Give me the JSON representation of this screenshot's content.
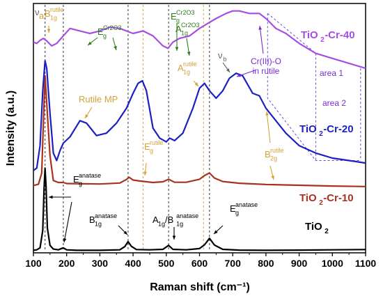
{
  "chart_data": {
    "type": "line",
    "xlabel": "Raman shift (cm⁻¹)",
    "ylabel": "Intensity (a.u.)",
    "xlim": [
      100,
      1100
    ],
    "xticks": [
      100,
      200,
      300,
      400,
      500,
      600,
      700,
      800,
      900,
      1000,
      1100
    ],
    "ylim": [
      0,
      1
    ],
    "y_ticks_shown": false,
    "grid": false,
    "vlines": [
      {
        "x": 135,
        "style": "dashed",
        "color": "#333333"
      },
      {
        "x": 190,
        "style": "dashed",
        "color": "#333333"
      },
      {
        "x": 385,
        "style": "dashed",
        "color": "#333333"
      },
      {
        "x": 430,
        "style": "dashed",
        "color": "#d4a237"
      },
      {
        "x": 507,
        "style": "dashed",
        "color": "#333333"
      },
      {
        "x": 612,
        "style": "dashed",
        "color": "#d4a237"
      },
      {
        "x": 630,
        "style": "dashed",
        "color": "#333333"
      }
    ],
    "series": [
      {
        "name": "TiO2",
        "label_main": "TiO",
        "label_sub": "2",
        "label_tail": "",
        "color": "#000000",
        "x": [
          100,
          110,
          120,
          128,
          132,
          135,
          138,
          142,
          150,
          160,
          175,
          190,
          200,
          230,
          300,
          360,
          375,
          385,
          395,
          410,
          450,
          490,
          507,
          520,
          560,
          600,
          615,
          630,
          645,
          670,
          720,
          800,
          900,
          1000,
          1100
        ],
        "y": [
          0.01,
          0.012,
          0.02,
          0.09,
          0.26,
          0.34,
          0.27,
          0.1,
          0.03,
          0.015,
          0.012,
          0.02,
          0.012,
          0.01,
          0.01,
          0.012,
          0.025,
          0.045,
          0.026,
          0.013,
          0.012,
          0.014,
          0.03,
          0.014,
          0.012,
          0.017,
          0.032,
          0.058,
          0.031,
          0.014,
          0.011,
          0.01,
          0.011,
          0.012,
          0.013
        ]
      },
      {
        "name": "TiO2-Cr-10",
        "label_main": "TiO",
        "label_sub": "2",
        "label_tail": "-Cr-10",
        "color": "#a8321e",
        "x": [
          100,
          115,
          125,
          130,
          135,
          140,
          150,
          160,
          175,
          190,
          200,
          300,
          360,
          380,
          388,
          400,
          420,
          460,
          490,
          507,
          525,
          560,
          600,
          615,
          630,
          645,
          670,
          720,
          800,
          900,
          1000,
          1100
        ],
        "y": [
          0.27,
          0.275,
          0.32,
          0.52,
          0.71,
          0.6,
          0.39,
          0.29,
          0.282,
          0.282,
          0.278,
          0.276,
          0.28,
          0.294,
          0.303,
          0.292,
          0.288,
          0.282,
          0.285,
          0.295,
          0.283,
          0.283,
          0.295,
          0.31,
          0.32,
          0.3,
          0.286,
          0.279,
          0.274,
          0.271,
          0.268,
          0.266
        ]
      },
      {
        "name": "TiO2-Cr-20",
        "label_main": "TiO",
        "label_sub": "2",
        "label_tail": "-Cr-20",
        "color": "#1b1fc4",
        "x": [
          100,
          110,
          120,
          128,
          135,
          140,
          150,
          160,
          170,
          180,
          190,
          210,
          240,
          260,
          290,
          320,
          350,
          380,
          400,
          415,
          428,
          440,
          460,
          480,
          500,
          510,
          525,
          550,
          580,
          600,
          615,
          630,
          650,
          670,
          690,
          710,
          730,
          760,
          780,
          800,
          830,
          860,
          900,
          950,
          1000,
          1050,
          1100
        ],
        "y": [
          0.33,
          0.34,
          0.43,
          0.65,
          0.77,
          0.74,
          0.56,
          0.4,
          0.37,
          0.41,
          0.44,
          0.465,
          0.53,
          0.52,
          0.47,
          0.48,
          0.52,
          0.58,
          0.64,
          0.68,
          0.69,
          0.65,
          0.5,
          0.46,
          0.445,
          0.46,
          0.45,
          0.48,
          0.58,
          0.66,
          0.68,
          0.65,
          0.62,
          0.65,
          0.7,
          0.72,
          0.71,
          0.64,
          0.63,
          0.58,
          0.53,
          0.48,
          0.43,
          0.4,
          0.38,
          0.37,
          0.36
        ]
      },
      {
        "name": "TiO2-Cr-40",
        "label_main": "TiO",
        "label_sub": "2",
        "label_tail": "-Cr-40",
        "color": "#a64ee0",
        "x": [
          100,
          110,
          120,
          130,
          140,
          155,
          170,
          190,
          210,
          240,
          270,
          300,
          330,
          360,
          400,
          430,
          460,
          490,
          505,
          520,
          540,
          570,
          600,
          625,
          650,
          680,
          700,
          720,
          750,
          780,
          800,
          830,
          860,
          900,
          950,
          1000,
          1050,
          1100
        ],
        "y": [
          0.845,
          0.84,
          0.852,
          0.86,
          0.85,
          0.83,
          0.84,
          0.87,
          0.9,
          0.89,
          0.88,
          0.89,
          0.905,
          0.9,
          0.88,
          0.89,
          0.87,
          0.83,
          0.82,
          0.845,
          0.86,
          0.87,
          0.9,
          0.92,
          0.94,
          0.96,
          0.97,
          0.97,
          0.96,
          0.96,
          0.94,
          0.9,
          0.88,
          0.84,
          0.8,
          0.78,
          0.76,
          0.74
        ]
      }
    ],
    "annotations": {
      "black": [
        {
          "main": "E",
          "sub": "g",
          "sup": "anatase"
        },
        {
          "main": "B",
          "sub": "1g",
          "sup": "anatase"
        },
        {
          "main": "A",
          "sub": "1g",
          "sup": ""
        },
        {
          "main": "/B",
          "sub": "1g",
          "sup": "anatase"
        },
        {
          "main": "E",
          "sub": "g",
          "sup": "anatase"
        }
      ],
      "gold": [
        {
          "main": "a",
          "sub": "",
          "sup": ""
        },
        {
          "main": "B",
          "sub": "1g",
          "sup": "rutile"
        },
        {
          "main": "Rutile MP",
          "sub": "",
          "sup": ""
        },
        {
          "main": "E",
          "sub": "g",
          "sup": "rutile"
        },
        {
          "main": "A",
          "sub": "1g",
          "sup": "rutile"
        },
        {
          "main": "B",
          "sub": "2g",
          "sup": "rutile"
        }
      ],
      "green": [
        {
          "main": "E",
          "sub": "g",
          "sup": "Cr2O3"
        },
        {
          "main": "E",
          "sub": "g",
          "sup": "Cr2O3"
        },
        {
          "main": "A",
          "sub": "1g",
          "sup": "Cr2O3"
        }
      ],
      "purple": [
        {
          "text": "Cr(III)-O"
        },
        {
          "text": "in rutile"
        },
        {
          "text": "area 1"
        },
        {
          "text": "area 2"
        }
      ],
      "gray": [
        {
          "main": "ν",
          "sub": "b",
          "sup": ""
        },
        {
          "main": "ν",
          "sub": "",
          "sup": ""
        }
      ]
    }
  }
}
